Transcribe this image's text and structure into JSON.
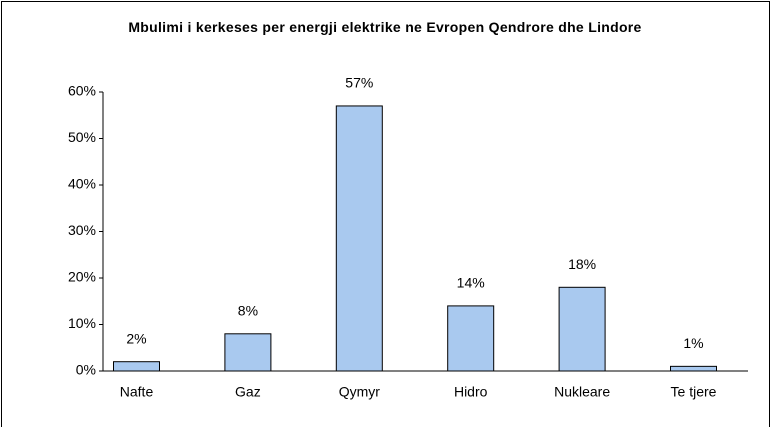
{
  "chart_data": {
    "type": "bar",
    "title": "Mbulimi i kerkeses per energji elektrike ne Evropen Qendrore dhe Lindore",
    "categories": [
      "Nafte",
      "Gaz",
      "Qymyr",
      "Hidro",
      "Nukleare",
      "Te tjere"
    ],
    "values": [
      2,
      8,
      57,
      14,
      18,
      1
    ],
    "value_labels": [
      "2%",
      "8%",
      "57%",
      "14%",
      "18%",
      "1%"
    ],
    "color": "#a9c9ef",
    "ylim": [
      0,
      60
    ],
    "yticks": [
      {
        "value": 0,
        "label": "0%"
      },
      {
        "value": 10,
        "label": "10%"
      },
      {
        "value": 20,
        "label": "20%"
      },
      {
        "value": 30,
        "label": "30%"
      },
      {
        "value": 40,
        "label": "40%"
      },
      {
        "value": 50,
        "label": "50%"
      },
      {
        "value": 60,
        "label": "60%"
      }
    ],
    "grid": false
  }
}
